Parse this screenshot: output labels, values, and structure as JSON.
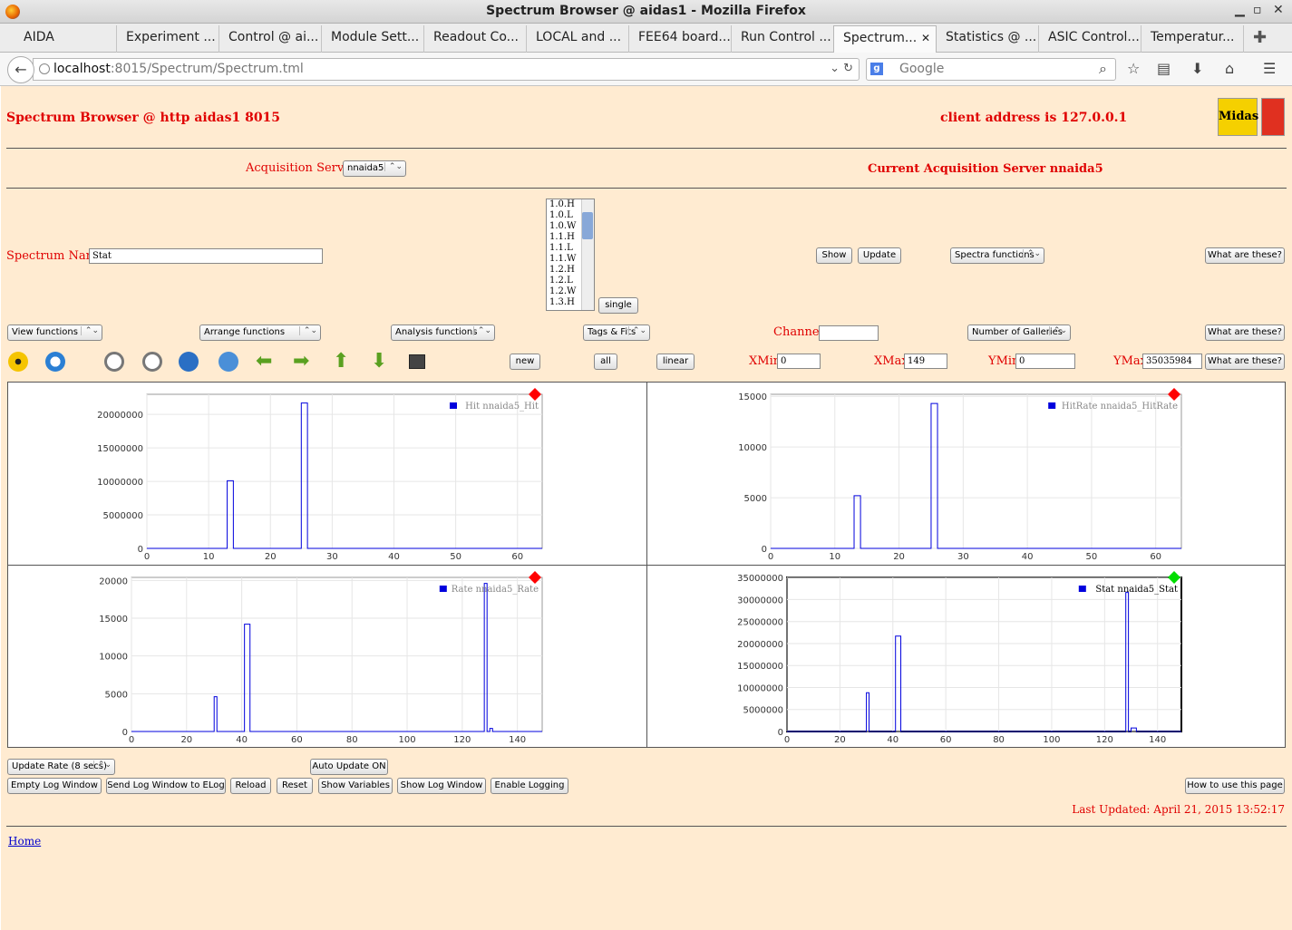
{
  "window": {
    "title": "Spectrum Browser @ aidas1 - Mozilla Firefox"
  },
  "tabs": [
    {
      "label": "AIDA"
    },
    {
      "label": "Experiment ..."
    },
    {
      "label": "Control @ ai..."
    },
    {
      "label": "Module Sett..."
    },
    {
      "label": "Readout Co..."
    },
    {
      "label": "LOCAL and ..."
    },
    {
      "label": "FEE64 board..."
    },
    {
      "label": "Run Control ..."
    },
    {
      "label": "Spectrum..."
    },
    {
      "label": "Statistics @ ..."
    },
    {
      "label": "ASIC Control..."
    },
    {
      "label": "Temperatur..."
    }
  ],
  "url": {
    "host": "localhost",
    "path": ":8015/Spectrum/Spectrum.tml"
  },
  "search": {
    "placeholder": "Google"
  },
  "page": {
    "title": "Spectrum Browser @ http aidas1 8015",
    "client": "client address is 127.0.0.1",
    "logo_text": "Midas",
    "acq_label": "Acquisition Servers",
    "acq_value": "nnaida5",
    "current_server": "Current Acquisition Server nnaida5",
    "spectrum_name_label": "Spectrum Name:",
    "spectrum_name_value": "Stat",
    "list_items": [
      "1.0.H",
      "1.0.L",
      "1.0.W",
      "1.1.H",
      "1.1.L",
      "1.1.W",
      "1.2.H",
      "1.2.L",
      "1.2.W",
      "1.3.H"
    ],
    "single": "single",
    "show": "Show",
    "update": "Update",
    "spectra_functions": "Spectra functions",
    "what1": "What are these?",
    "view_functions": "View functions",
    "arrange_functions": "Arrange functions",
    "analysis_functions": "Analysis functions",
    "tags_fits": "Tags & Fits",
    "channel_label": "Channel:",
    "channel_value": "",
    "galleries": "Number of Galleries",
    "what2": "What are these?",
    "new": "new",
    "all": "all",
    "linear": "linear",
    "xmin_label": "XMin",
    "xmin": "0",
    "xmax_label": "XMax",
    "xmax": "149",
    "ymin_label": "YMin",
    "ymin": "0",
    "ymax_label": "YMax",
    "ymax": "35035984",
    "what3": "What are these?",
    "update_rate": "Update Rate (8 secs)",
    "auto_update": "Auto Update ON",
    "empty_log": "Empty Log Window",
    "send_log": "Send Log Window to ELog",
    "reload": "Reload",
    "reset": "Reset",
    "show_vars": "Show Variables",
    "show_log": "Show Log Window",
    "enable_log": "Enable Logging",
    "howto": "How to use this page",
    "last_updated": "Last Updated: April 21, 2015 13:52:17",
    "home": "Home"
  },
  "toolbar_icons": [
    "radiation-icon",
    "refresh-icon",
    "zoom-in-icon",
    "zoom-out-icon",
    "expand-y-icon",
    "compress-y-icon",
    "left-arrow-icon",
    "right-arrow-icon",
    "up-arrow-icon",
    "down-arrow-icon",
    "screenshot-icon"
  ],
  "colors": {
    "page_bg": "#ffebd1",
    "red": "#e00000",
    "series": "#0000dd"
  },
  "chart_data": [
    {
      "type": "line",
      "legend": "Hit nnaida5_Hit",
      "marker": "#ff0000",
      "xlim": [
        0,
        64
      ],
      "ylim": [
        0,
        23000000
      ],
      "xticks": [
        0,
        10,
        20,
        30,
        40,
        50,
        60
      ],
      "yticks": [
        0,
        5000000,
        10000000,
        15000000,
        20000000
      ],
      "x": [
        13,
        14,
        25,
        26
      ],
      "y": [
        10100000,
        10100000,
        21700000,
        21700000
      ]
    },
    {
      "type": "line",
      "legend": "HitRate nnaida5_HitRate",
      "marker": "#ff0000",
      "xlim": [
        0,
        64
      ],
      "ylim": [
        0,
        15200
      ],
      "xticks": [
        0,
        10,
        20,
        30,
        40,
        50,
        60
      ],
      "yticks": [
        0,
        5000,
        10000,
        15000
      ],
      "x": [
        13,
        14,
        25,
        26
      ],
      "y": [
        5200,
        5200,
        14300,
        14300
      ]
    },
    {
      "type": "line",
      "legend": "Rate nnaida5_Rate",
      "marker": "#ff0000",
      "xlim": [
        0,
        149
      ],
      "ylim": [
        0,
        20400
      ],
      "xticks": [
        0,
        20,
        40,
        60,
        80,
        100,
        120,
        140
      ],
      "yticks": [
        0,
        5000,
        10000,
        15000,
        20000
      ],
      "x": [
        30,
        31,
        41,
        43,
        128,
        129,
        130,
        131
      ],
      "y": [
        4600,
        4600,
        14200,
        14200,
        19600,
        19600,
        400,
        400
      ]
    },
    {
      "type": "line",
      "legend": "Stat nnaida5_Stat",
      "marker": "#00dd00",
      "xlim": [
        0,
        149
      ],
      "ylim": [
        0,
        35035984
      ],
      "xticks": [
        0,
        20,
        40,
        60,
        80,
        100,
        120,
        140
      ],
      "yticks": [
        0,
        5000000,
        10000000,
        15000000,
        20000000,
        25000000,
        30000000,
        35000000
      ],
      "x": [
        30,
        31,
        41,
        43,
        128,
        129,
        130,
        132
      ],
      "y": [
        8800000,
        8800000,
        21700000,
        21700000,
        31600000,
        31600000,
        800000,
        800000
      ]
    }
  ]
}
